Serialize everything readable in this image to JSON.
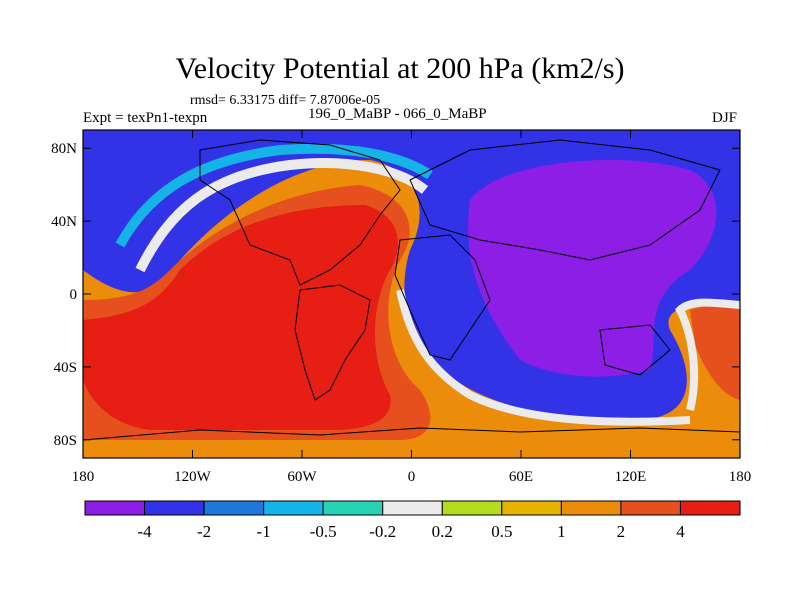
{
  "title": "Velocity Potential at 200 hPa (km2/s)",
  "stats": "rmsd= 6.33175 diff= 7.87006e-05",
  "experiment": "Expt = texPn1-texpn",
  "cases": "196_0_MaBP - 066_0_MaBP",
  "season": "DJF",
  "map": {
    "lat_range": [
      -90,
      90
    ],
    "lon_range": [
      -180,
      180
    ],
    "lat_ticks": [
      {
        "value": 80,
        "label": "80N"
      },
      {
        "value": 40,
        "label": "40N"
      },
      {
        "value": 0,
        "label": "0"
      },
      {
        "value": -40,
        "label": "40S"
      },
      {
        "value": -80,
        "label": "80S"
      }
    ],
    "lon_ticks": [
      {
        "value": -180,
        "label": "180"
      },
      {
        "value": -120,
        "label": "120W"
      },
      {
        "value": -60,
        "label": "60W"
      },
      {
        "value": 0,
        "label": "0"
      },
      {
        "value": 60,
        "label": "60E"
      },
      {
        "value": 120,
        "label": "120E"
      },
      {
        "value": 180,
        "label": "180"
      }
    ]
  },
  "colorbar": {
    "colors": [
      "#8c1ee6",
      "#3232e6",
      "#1e78dc",
      "#14b4e6",
      "#28d2b4",
      "#ebebeb",
      "#b4dc1e",
      "#e6b400",
      "#eb8c0a",
      "#e6501e",
      "#e61e14"
    ],
    "labels": [
      "-4",
      "-2",
      "-1",
      "-0.5",
      "-0.2",
      "0.2",
      "0.5",
      "1",
      "2",
      "4"
    ]
  }
}
